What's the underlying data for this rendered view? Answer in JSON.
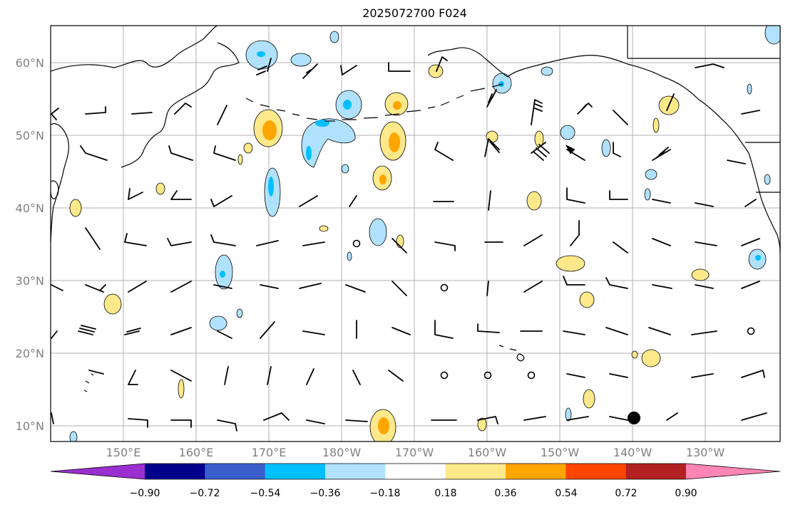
{
  "title": "2025072700 F024",
  "lat_labels": [
    "60°N",
    "50°N",
    "40°N",
    "30°N",
    "20°N",
    "10°N"
  ],
  "lon_labels": [
    "150°E",
    "160°E",
    "170°E",
    "180°W",
    "170°W",
    "160°W",
    "150°W",
    "140°W",
    "130°W"
  ],
  "colorbar": {
    "ticks": [
      "−0.90",
      "−0.72",
      "−0.54",
      "−0.36",
      "−0.18",
      "0.18",
      "0.36",
      "0.54",
      "0.72",
      "0.90"
    ],
    "colors": [
      "#9b30d0",
      "#00008b",
      "#3a5fcd",
      "#00bfff",
      "#b0e2ff",
      "#ffffff",
      "#ffe98a",
      "#ffa500",
      "#ff4500",
      "#b22222",
      "#ff85b4"
    ]
  },
  "colors": {
    "land_line": "#000000",
    "grid": "#b0b0b0",
    "label": "#808080"
  }
}
